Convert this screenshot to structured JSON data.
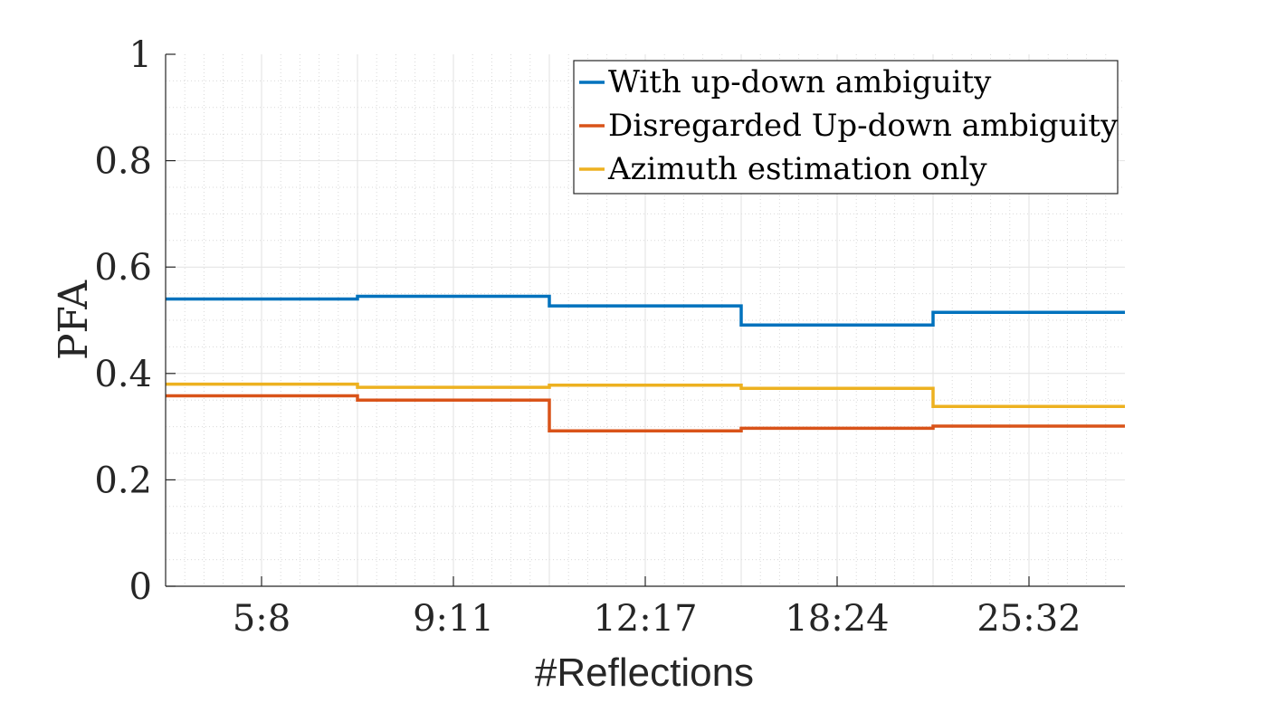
{
  "chart_data": {
    "type": "line",
    "step": true,
    "title": "",
    "xlabel": "#Reflections",
    "ylabel": "PFA",
    "categories": [
      "5:8",
      "9:11",
      "12:17",
      "18:24",
      "25:32"
    ],
    "y_ticks": [
      "0",
      "0.2",
      "0.4",
      "0.6",
      "0.8",
      "1"
    ],
    "ylim": [
      0,
      1
    ],
    "grid": true,
    "minor_grid": true,
    "legend_position": "top-right",
    "series": [
      {
        "name": "With up-down ambiguity",
        "color": "#0072BD",
        "values": [
          0.54,
          0.545,
          0.527,
          0.491,
          0.515
        ]
      },
      {
        "name": "Disregarded Up-down ambiguity",
        "color": "#D95319",
        "values": [
          0.358,
          0.35,
          0.292,
          0.297,
          0.301
        ]
      },
      {
        "name": "Azimuth estimation only",
        "color": "#EDB120",
        "values": [
          0.38,
          0.374,
          0.378,
          0.372,
          0.338
        ]
      }
    ]
  }
}
